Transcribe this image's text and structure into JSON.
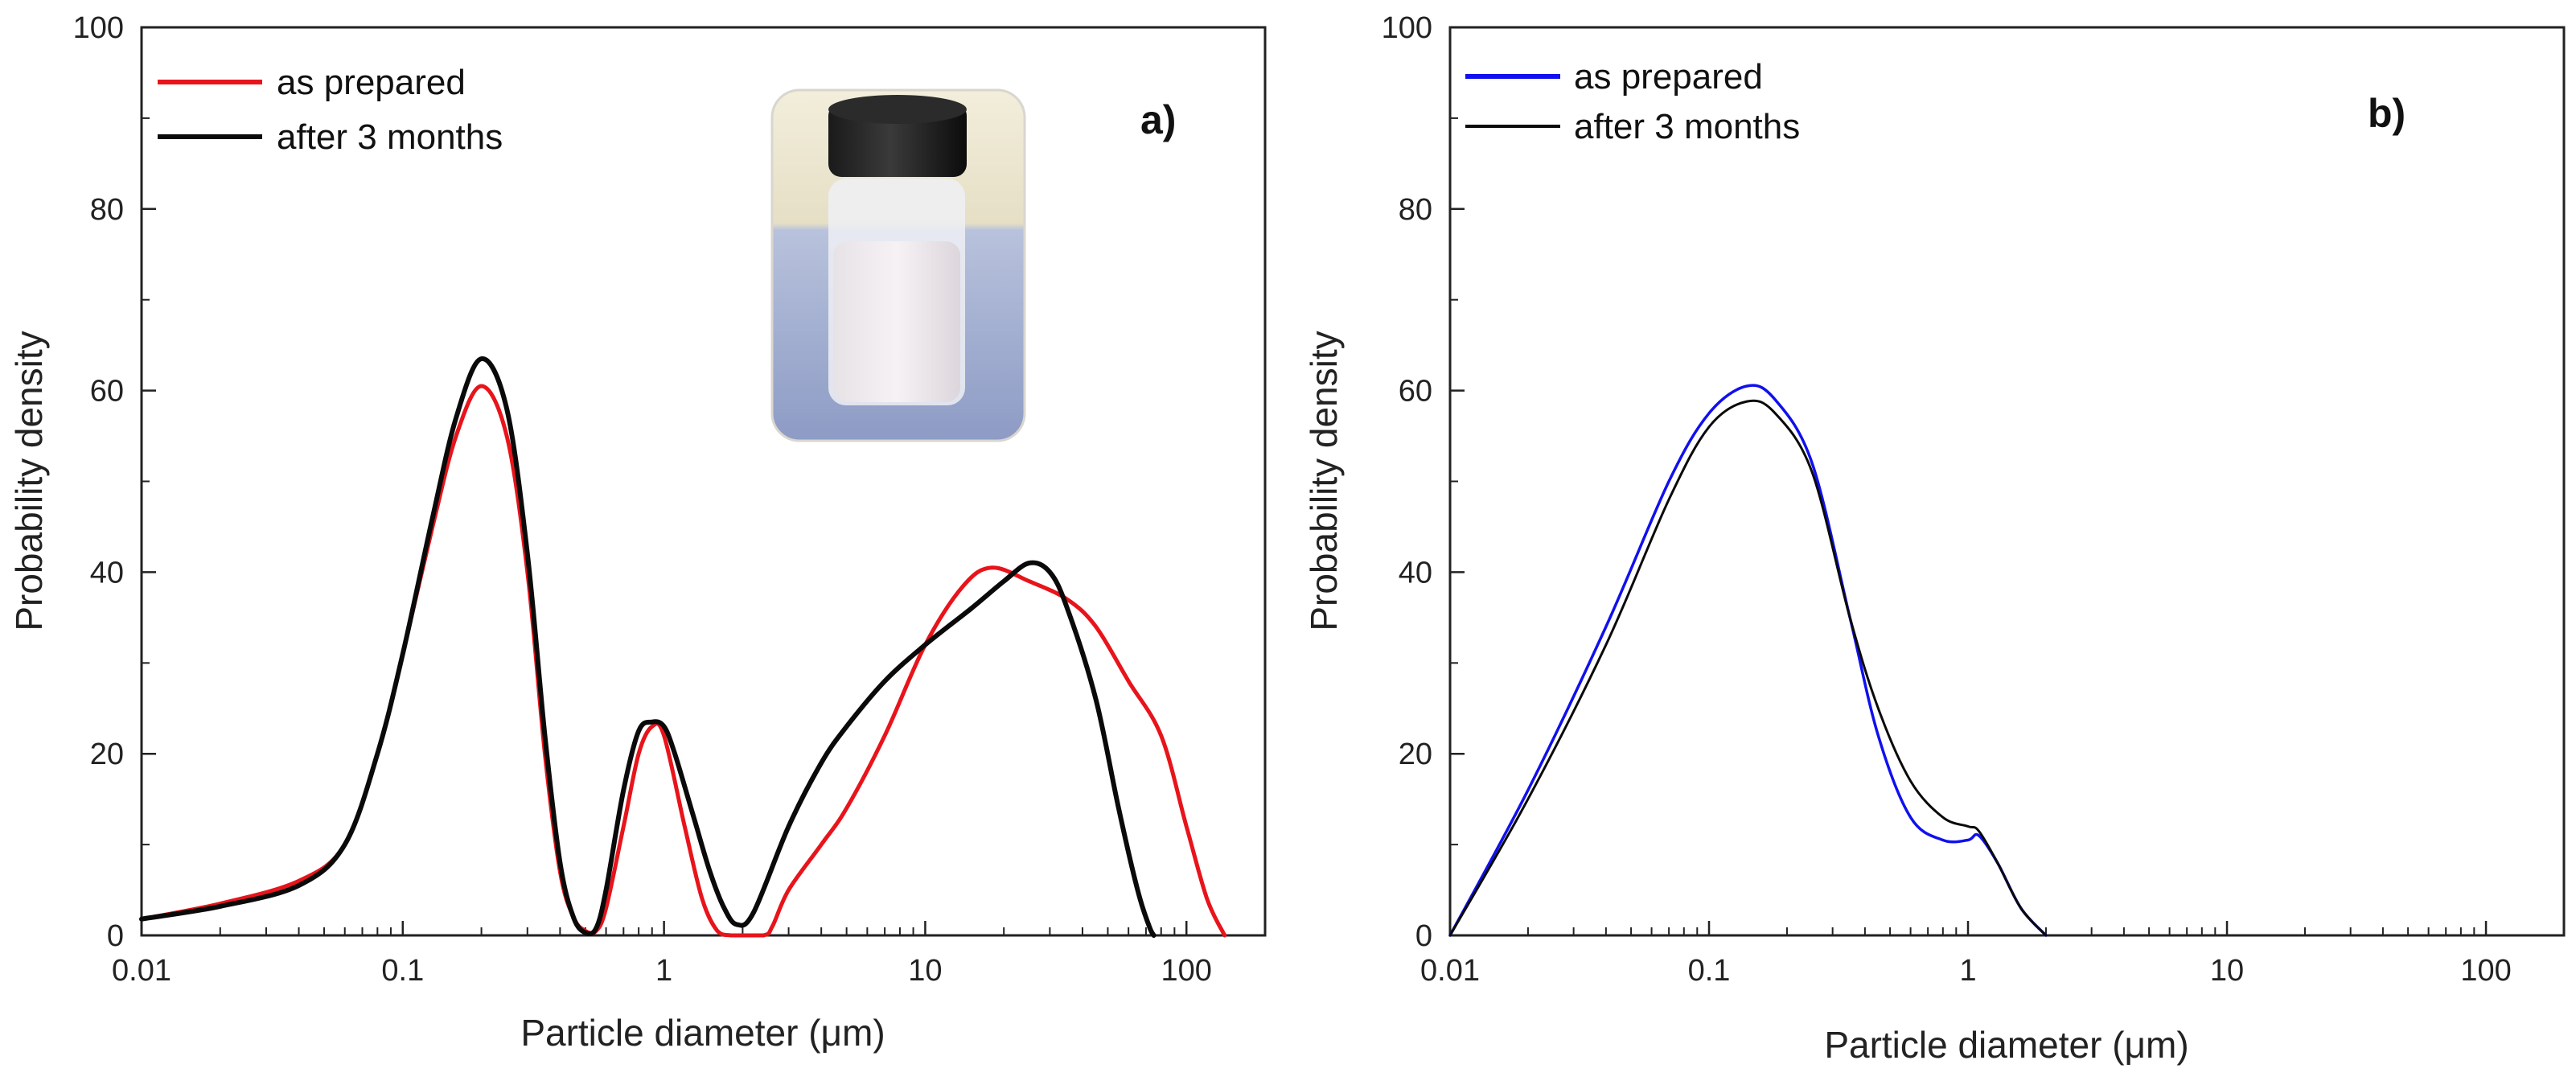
{
  "chart_data": [
    {
      "id": "a",
      "type": "line",
      "panel_label": "a)",
      "xlabel": "Particle diameter (μm)",
      "ylabel": "Probability density",
      "xscale": "log",
      "xlim": [
        0.01,
        200
      ],
      "ylim": [
        0,
        100
      ],
      "xticks": [
        0.01,
        0.1,
        1,
        10,
        100
      ],
      "xtick_labels": [
        "0.01",
        "0.1",
        "1",
        "10",
        "100"
      ],
      "yticks": [
        0,
        20,
        40,
        60,
        80,
        100
      ],
      "ytick_labels": [
        "0",
        "20",
        "40",
        "60",
        "80",
        "100"
      ],
      "legend_position": "top-left",
      "inset": "photo of capped glass vial containing white suspension",
      "series": [
        {
          "name": "as prepared",
          "color": "#e8141b",
          "points": [
            [
              0.01,
              1.8
            ],
            [
              0.02,
              3.5
            ],
            [
              0.04,
              6
            ],
            [
              0.06,
              10
            ],
            [
              0.08,
              20
            ],
            [
              0.1,
              31
            ],
            [
              0.13,
              45
            ],
            [
              0.16,
              55
            ],
            [
              0.2,
              60.5
            ],
            [
              0.25,
              55
            ],
            [
              0.3,
              40
            ],
            [
              0.35,
              20
            ],
            [
              0.4,
              7
            ],
            [
              0.45,
              2
            ],
            [
              0.5,
              0.5
            ],
            [
              0.55,
              0.5
            ],
            [
              0.6,
              3
            ],
            [
              0.7,
              12
            ],
            [
              0.8,
              20
            ],
            [
              0.9,
              23
            ],
            [
              1.0,
              22
            ],
            [
              1.2,
              12
            ],
            [
              1.4,
              4
            ],
            [
              1.6,
              0.5
            ],
            [
              1.8,
              0
            ],
            [
              2.4,
              0
            ],
            [
              2.6,
              1
            ],
            [
              3,
              5
            ],
            [
              4,
              10
            ],
            [
              5,
              14
            ],
            [
              7,
              22
            ],
            [
              10,
              32
            ],
            [
              14,
              38.5
            ],
            [
              18,
              40.5
            ],
            [
              25,
              39
            ],
            [
              35,
              37
            ],
            [
              45,
              34
            ],
            [
              60,
              28
            ],
            [
              80,
              22
            ],
            [
              100,
              12
            ],
            [
              120,
              4
            ],
            [
              140,
              0
            ]
          ]
        },
        {
          "name": "after 3 months",
          "color": "#0a0a0a",
          "points": [
            [
              0.01,
              1.8
            ],
            [
              0.02,
              3.2
            ],
            [
              0.04,
              5.5
            ],
            [
              0.06,
              10
            ],
            [
              0.08,
              20
            ],
            [
              0.1,
              31
            ],
            [
              0.13,
              46
            ],
            [
              0.16,
              57
            ],
            [
              0.2,
              63.5
            ],
            [
              0.25,
              58
            ],
            [
              0.3,
              42
            ],
            [
              0.35,
              22
            ],
            [
              0.4,
              8
            ],
            [
              0.45,
              2
            ],
            [
              0.5,
              0.3
            ],
            [
              0.55,
              0.8
            ],
            [
              0.6,
              5
            ],
            [
              0.7,
              16
            ],
            [
              0.8,
              22.5
            ],
            [
              0.9,
              23.5
            ],
            [
              1.0,
              23
            ],
            [
              1.1,
              20
            ],
            [
              1.3,
              13
            ],
            [
              1.5,
              7
            ],
            [
              1.7,
              3
            ],
            [
              1.9,
              1.2
            ],
            [
              2.2,
              2.5
            ],
            [
              3,
              12
            ],
            [
              4,
              19
            ],
            [
              5,
              23
            ],
            [
              7,
              28
            ],
            [
              10,
              32
            ],
            [
              15,
              36
            ],
            [
              20,
              39
            ],
            [
              25,
              41
            ],
            [
              30,
              40
            ],
            [
              35,
              36
            ],
            [
              45,
              26
            ],
            [
              55,
              14
            ],
            [
              65,
              5
            ],
            [
              72,
              1
            ],
            [
              75,
              0
            ]
          ]
        }
      ]
    },
    {
      "id": "b",
      "type": "line",
      "panel_label": "b)",
      "xlabel": "Particle diameter (μm)",
      "ylabel": "Probability density",
      "xscale": "log",
      "xlim": [
        0.01,
        200
      ],
      "ylim": [
        0,
        100
      ],
      "xticks": [
        0.01,
        0.1,
        1,
        10,
        100
      ],
      "xtick_labels": [
        "0.01",
        "0.1",
        "1",
        "10",
        "100"
      ],
      "yticks": [
        0,
        20,
        40,
        60,
        80,
        100
      ],
      "ytick_labels": [
        "0",
        "20",
        "40",
        "60",
        "80",
        "100"
      ],
      "legend_position": "top-left",
      "series": [
        {
          "name": "as prepared",
          "color": "#1010ee",
          "points": [
            [
              0.01,
              0
            ],
            [
              0.02,
              16
            ],
            [
              0.04,
              34
            ],
            [
              0.07,
              50
            ],
            [
              0.1,
              57.5
            ],
            [
              0.14,
              60.5
            ],
            [
              0.18,
              59
            ],
            [
              0.25,
              52
            ],
            [
              0.35,
              35
            ],
            [
              0.45,
              22
            ],
            [
              0.6,
              13
            ],
            [
              0.8,
              10.5
            ],
            [
              1.0,
              10.5
            ],
            [
              1.1,
              11
            ],
            [
              1.3,
              8
            ],
            [
              1.6,
              3
            ],
            [
              2.0,
              0
            ]
          ]
        },
        {
          "name": "after 3 months",
          "color": "#0a0a0a",
          "points": [
            [
              0.01,
              0
            ],
            [
              0.02,
              15
            ],
            [
              0.04,
              32
            ],
            [
              0.07,
              48
            ],
            [
              0.1,
              56
            ],
            [
              0.14,
              58.8
            ],
            [
              0.18,
              57.5
            ],
            [
              0.25,
              51
            ],
            [
              0.35,
              35
            ],
            [
              0.45,
              25
            ],
            [
              0.6,
              17
            ],
            [
              0.8,
              13
            ],
            [
              1.0,
              12
            ],
            [
              1.1,
              11.5
            ],
            [
              1.3,
              8
            ],
            [
              1.6,
              3
            ],
            [
              2.0,
              0
            ]
          ]
        }
      ]
    }
  ]
}
